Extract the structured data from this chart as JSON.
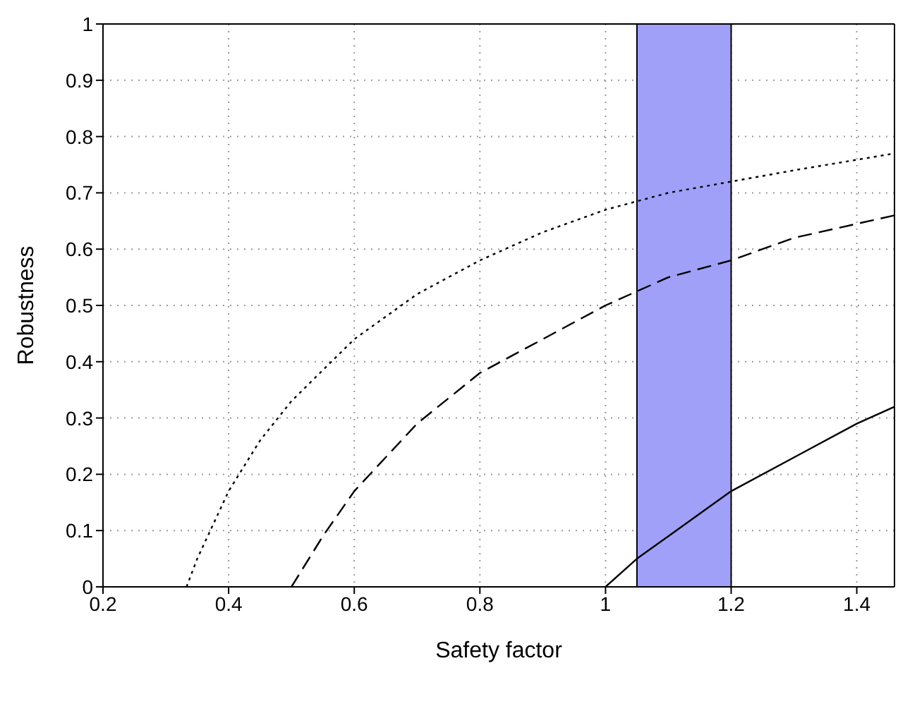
{
  "chart_data": {
    "type": "line",
    "xlabel": "Safety factor",
    "ylabel": "Robustness",
    "xlim": [
      0.2,
      1.46
    ],
    "xticks": [
      0.2,
      0.4,
      0.6,
      0.8,
      1,
      1.2,
      1.4
    ],
    "ylim": [
      0,
      1
    ],
    "yticks": [
      0,
      0.1,
      0.2,
      0.3,
      0.4,
      0.5,
      0.6,
      0.7,
      0.8,
      0.9,
      1
    ],
    "grid": true,
    "marker": "none",
    "bands": [
      {
        "axis": "x",
        "from": 1.05,
        "to": 1.2,
        "color": "#a0a0f8"
      }
    ],
    "series": [
      {
        "color": "#000000",
        "line_style": "dotted",
        "x": [
          0.333,
          0.35,
          0.4,
          0.45,
          0.5,
          0.6,
          0.7,
          0.8,
          0.9,
          1.0,
          1.1,
          1.2,
          1.3,
          1.46
        ],
        "values": [
          0,
          0.05,
          0.17,
          0.26,
          0.33,
          0.44,
          0.52,
          0.58,
          0.63,
          0.67,
          0.7,
          0.72,
          0.74,
          0.77
        ]
      },
      {
        "color": "#000000",
        "line_style": "dashed",
        "x": [
          0.5,
          0.55,
          0.6,
          0.7,
          0.8,
          0.9,
          1.0,
          1.1,
          1.2,
          1.3,
          1.46
        ],
        "values": [
          0,
          0.09,
          0.17,
          0.29,
          0.38,
          0.44,
          0.5,
          0.55,
          0.58,
          0.62,
          0.66
        ]
      },
      {
        "color": "#000000",
        "line_style": "solid",
        "x": [
          1.0,
          1.05,
          1.1,
          1.2,
          1.3,
          1.4,
          1.46
        ],
        "values": [
          0,
          0.05,
          0.09,
          0.17,
          0.23,
          0.29,
          0.32
        ]
      }
    ]
  }
}
